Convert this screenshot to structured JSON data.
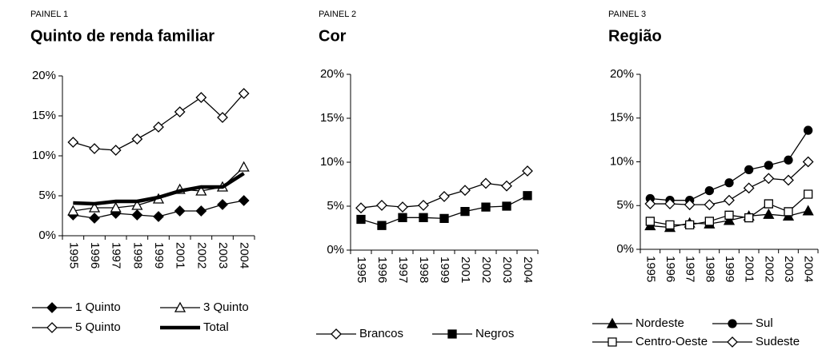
{
  "chart_data": [
    {
      "type": "line",
      "label": "PAINEL 1",
      "title": "Quinto de renda familiar",
      "categories": [
        "1995",
        "1996",
        "1997",
        "1998",
        "1999",
        "2001",
        "2002",
        "2003",
        "2004"
      ],
      "ylim": [
        0,
        20
      ],
      "yticks": [
        {
          "value": 0,
          "label": "0%"
        },
        {
          "value": 5,
          "label": "5%"
        },
        {
          "value": 10,
          "label": "10%"
        },
        {
          "value": 15,
          "label": "15%"
        },
        {
          "value": 20,
          "label": "20%"
        }
      ],
      "series": [
        {
          "name": "1 Quinto",
          "color": "#000000",
          "marker": "diamond-filled",
          "values": [
            2.6,
            2.2,
            2.8,
            2.6,
            2.4,
            3.1,
            3.1,
            3.9,
            4.4
          ]
        },
        {
          "name": "3 Quinto",
          "color": "#000000",
          "marker": "triangle-open",
          "values": [
            3.1,
            3.5,
            3.5,
            3.8,
            4.6,
            5.8,
            5.6,
            6.1,
            8.6
          ]
        },
        {
          "name": "5 Quinto",
          "color": "#000000",
          "marker": "diamond-open",
          "values": [
            11.7,
            10.9,
            10.7,
            12.1,
            13.6,
            15.5,
            17.3,
            14.8,
            17.8
          ]
        },
        {
          "name": "Total",
          "color": "#000000",
          "marker": "none",
          "values": [
            4.1,
            4.0,
            4.3,
            4.3,
            4.8,
            5.6,
            6.1,
            6.1,
            7.8
          ]
        }
      ]
    },
    {
      "type": "line",
      "label": "PAINEL 2",
      "title": "Cor",
      "categories": [
        "1995",
        "1996",
        "1997",
        "1998",
        "1999",
        "2001",
        "2002",
        "2003",
        "2004"
      ],
      "ylim": [
        0,
        20
      ],
      "yticks": [
        {
          "value": 0,
          "label": "0%"
        },
        {
          "value": 5,
          "label": "5%"
        },
        {
          "value": 10,
          "label": "10%"
        },
        {
          "value": 15,
          "label": "15%"
        },
        {
          "value": 20,
          "label": "20%"
        }
      ],
      "series": [
        {
          "name": "Brancos",
          "color": "#000000",
          "marker": "diamond-open",
          "values": [
            4.8,
            5.1,
            4.9,
            5.1,
            6.1,
            6.8,
            7.6,
            7.3,
            9.0
          ]
        },
        {
          "name": "Negros",
          "color": "#000000",
          "marker": "square-filled",
          "values": [
            3.5,
            2.8,
            3.7,
            3.7,
            3.6,
            4.4,
            4.9,
            5.0,
            6.2
          ]
        }
      ]
    },
    {
      "type": "line",
      "label": "PAINEL 3",
      "title": "Região",
      "categories": [
        "1995",
        "1996",
        "1997",
        "1998",
        "1999",
        "2001",
        "2002",
        "2003",
        "2004"
      ],
      "ylim": [
        0,
        20
      ],
      "yticks": [
        {
          "value": 0,
          "label": "0%"
        },
        {
          "value": 5,
          "label": "5%"
        },
        {
          "value": 10,
          "label": "10%"
        },
        {
          "value": 15,
          "label": "15%"
        },
        {
          "value": 20,
          "label": "20%"
        }
      ],
      "series": [
        {
          "name": "Nordeste",
          "color": "#000000",
          "marker": "triangle-filled",
          "values": [
            2.7,
            2.5,
            3.0,
            2.9,
            3.3,
            3.8,
            4.0,
            3.8,
            4.4
          ]
        },
        {
          "name": "Sul",
          "color": "#000000",
          "marker": "circle-filled",
          "values": [
            5.8,
            5.6,
            5.6,
            6.7,
            7.6,
            9.1,
            9.6,
            10.2,
            13.6
          ]
        },
        {
          "name": "Centro-Oeste",
          "color": "#000000",
          "marker": "square-open",
          "values": [
            3.2,
            2.8,
            2.8,
            3.2,
            3.9,
            3.6,
            5.2,
            4.3,
            6.3
          ]
        },
        {
          "name": "Sudeste",
          "color": "#000000",
          "marker": "diamond-open",
          "values": [
            5.2,
            5.2,
            5.1,
            5.1,
            5.6,
            7.0,
            8.1,
            7.9,
            10.0
          ]
        }
      ]
    }
  ]
}
